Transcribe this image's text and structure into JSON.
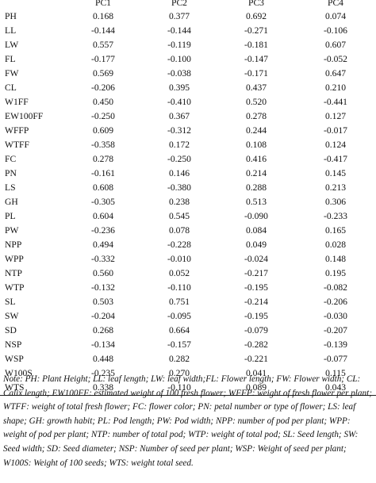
{
  "columns": [
    "",
    "PC1",
    "PC2",
    "PC3",
    "PC4"
  ],
  "rows": [
    {
      "label": "PH",
      "values": [
        "0.168",
        "0.377",
        "0.692",
        "0.074"
      ],
      "bold": [
        false,
        false,
        true,
        false
      ]
    },
    {
      "label": "LL",
      "values": [
        "-0.144",
        "-0.144",
        "-0.271",
        "-0.106"
      ],
      "bold": [
        false,
        false,
        false,
        false
      ]
    },
    {
      "label": "LW",
      "values": [
        "0.557",
        "-0.119",
        "-0.181",
        "0.607"
      ],
      "bold": [
        true,
        false,
        false,
        true
      ]
    },
    {
      "label": "FL",
      "values": [
        "-0.177",
        "-0.100",
        "-0.147",
        "-0.052"
      ],
      "bold": [
        false,
        false,
        false,
        false
      ]
    },
    {
      "label": "FW",
      "values": [
        "0.569",
        "-0.038",
        "-0.171",
        "0.647"
      ],
      "bold": [
        true,
        false,
        false,
        true
      ]
    },
    {
      "label": "CL",
      "values": [
        "-0.206",
        "0.395",
        "0.437",
        "0.210"
      ],
      "bold": [
        false,
        false,
        false,
        false
      ]
    },
    {
      "label": "W1FF",
      "values": [
        "0.450",
        "-0.410",
        "0.520",
        "-0.441"
      ],
      "bold": [
        false,
        false,
        true,
        false
      ]
    },
    {
      "label": "EW100FF",
      "values": [
        "-0.250",
        "0.367",
        "0.278",
        "0.127"
      ],
      "bold": [
        false,
        false,
        false,
        false
      ]
    },
    {
      "label": "WFFP",
      "values": [
        "0.609",
        "-0.312",
        "0.244",
        "-0.017"
      ],
      "bold": [
        true,
        false,
        false,
        false
      ]
    },
    {
      "label": "WTFF",
      "values": [
        "-0.358",
        "0.172",
        "0.108",
        "0.124"
      ],
      "bold": [
        false,
        false,
        false,
        false
      ]
    },
    {
      "label": "FC",
      "values": [
        "0.278",
        "-0.250",
        "0.416",
        "-0.417"
      ],
      "bold": [
        false,
        false,
        false,
        false
      ]
    },
    {
      "label": "PN",
      "values": [
        "-0.161",
        "0.146",
        "0.214",
        "0.145"
      ],
      "bold": [
        false,
        false,
        false,
        false
      ]
    },
    {
      "label": "LS",
      "values": [
        "0.608",
        "-0.380",
        "0.288",
        "0.213"
      ],
      "bold": [
        true,
        false,
        false,
        false
      ]
    },
    {
      "label": "GH",
      "values": [
        "-0.305",
        "0.238",
        "0.513",
        "0.306"
      ],
      "bold": [
        false,
        false,
        true,
        false
      ]
    },
    {
      "label": "PL",
      "values": [
        "0.604",
        "0.545",
        "-0.090",
        "-0.233"
      ],
      "bold": [
        true,
        true,
        false,
        false
      ]
    },
    {
      "label": "PW",
      "values": [
        "-0.236",
        "0.078",
        "0.084",
        "0.165"
      ],
      "bold": [
        false,
        false,
        false,
        false
      ]
    },
    {
      "label": "NPP",
      "values": [
        "0.494",
        "-0.228",
        "0.049",
        "0.028"
      ],
      "bold": [
        false,
        false,
        false,
        false
      ]
    },
    {
      "label": "WPP",
      "values": [
        "-0.332",
        "-0.010",
        "-0.024",
        "0.148"
      ],
      "bold": [
        false,
        false,
        false,
        false
      ]
    },
    {
      "label": "NTP",
      "values": [
        "0.560",
        "0.052",
        "-0.217",
        "0.195"
      ],
      "bold": [
        true,
        false,
        false,
        false
      ]
    },
    {
      "label": "WTP",
      "values": [
        "-0.132",
        "-0.110",
        "-0.195",
        "-0.082"
      ],
      "bold": [
        false,
        false,
        false,
        false
      ]
    },
    {
      "label": "SL",
      "values": [
        "0.503",
        "0.751",
        "-0.214",
        "-0.206"
      ],
      "bold": [
        true,
        true,
        false,
        false
      ]
    },
    {
      "label": "SW",
      "values": [
        "-0.204",
        "-0.095",
        "-0.195",
        "-0.030"
      ],
      "bold": [
        false,
        false,
        false,
        false
      ]
    },
    {
      "label": "SD",
      "values": [
        "0.268",
        "0.664",
        "-0.079",
        "-0.207"
      ],
      "bold": [
        false,
        true,
        false,
        false
      ]
    },
    {
      "label": "NSP",
      "values": [
        "-0.134",
        "-0.157",
        "-0.282",
        "-0.139"
      ],
      "bold": [
        false,
        false,
        false,
        false
      ]
    },
    {
      "label": "WSP",
      "values": [
        "0.448",
        "0.282",
        "-0.221",
        "-0.077"
      ],
      "bold": [
        false,
        false,
        false,
        false
      ]
    },
    {
      "label": "W100S",
      "values": [
        "-0.235",
        "0.270",
        "0.041",
        "0.115"
      ],
      "bold": [
        false,
        false,
        false,
        false
      ]
    },
    {
      "label": "WTS",
      "values": [
        "0.338",
        "-0.110",
        "0.089",
        "0.043"
      ],
      "bold": [
        false,
        false,
        false,
        false
      ]
    }
  ],
  "note": "Note: PH: Plant Height; LL: leaf length; LW: leaf width;FL: Flower length; FW: Flower width; CL: Calix length; EW100FF: estimated weight of 100 fresh flower; WFFP: weight of fresh flower per plant; WTFF: weight of total fresh flower; FC: flower color; PN: petal number or type of flower; LS: leaf shape; GH: growth habit; PL: Pod length; PW: Pod width; NPP: number of pod per plant; WPP: weight of pod per plant; NTP: number of total pod; WTP: weight of total pod; SL: Seed length; SW: Seed width; SD: Seed diameter; NSP: Number of seed per plant; WSP: Weight of seed per plant; W100S: Weight of 100 seeds; WTS: weight total seed."
}
